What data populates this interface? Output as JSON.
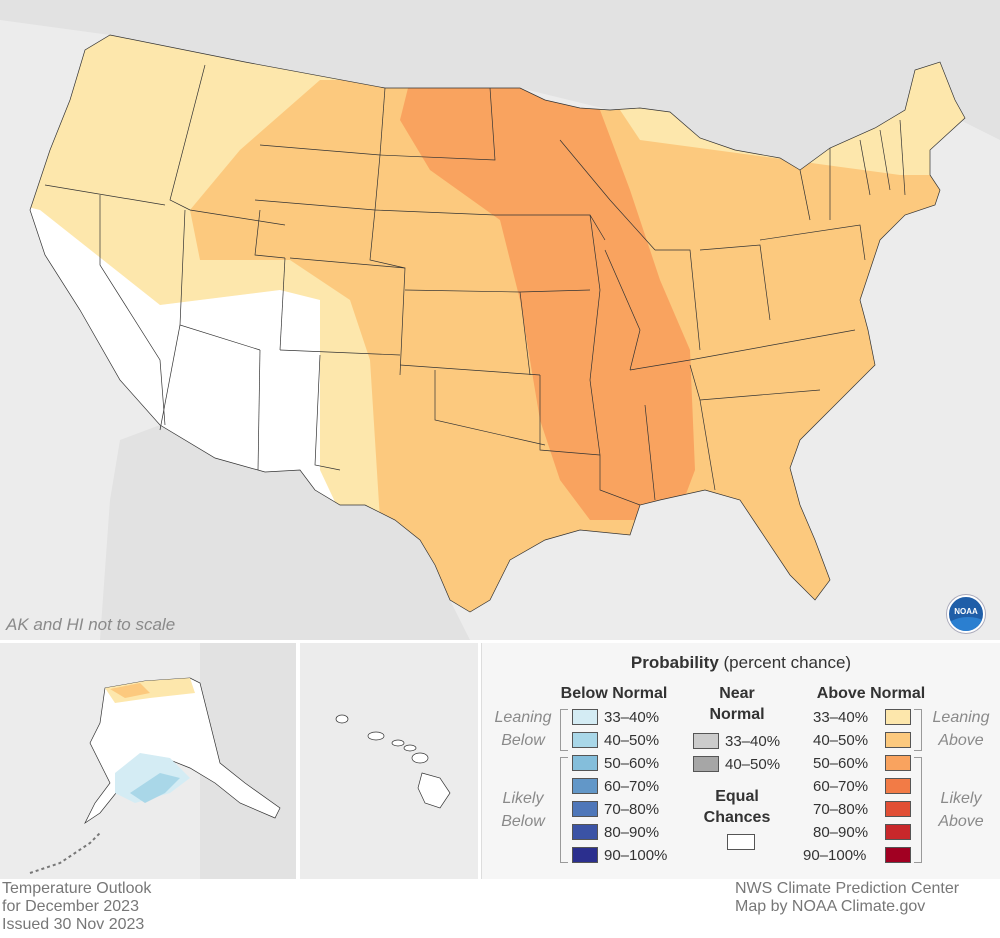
{
  "map": {
    "inset_note": "AK and HI not to scale",
    "logo_text": "NOAA"
  },
  "colors": {
    "background": "#ececec",
    "equal_chances": "#ffffff",
    "above_33_40": "#fde7ac",
    "above_40_50": "#fcc97e",
    "above_50_60": "#f9a35f",
    "above_60_70": "#f27b46",
    "above_70_80": "#e14f35",
    "above_80_90": "#c8282b",
    "above_90_100": "#a10022",
    "below_33_40": "#d4ecf4",
    "below_40_50": "#a9d7e8",
    "below_50_60": "#84bedb",
    "below_60_70": "#6297c8",
    "below_70_80": "#4f77b9",
    "below_80_90": "#3b53a5",
    "below_90_100": "#2b2f8e",
    "near_33_40": "#cccccc",
    "near_40_50": "#a6a6a6"
  },
  "legend": {
    "title_bold": "Probability",
    "title_rest": " (percent chance)",
    "below_header": "Below Normal",
    "near_header_1": "Near",
    "near_header_2": "Normal",
    "above_header": "Above Normal",
    "leaning_label_1": "Leaning",
    "below_label": "Below",
    "above_label": "Above",
    "likely_label": "Likely",
    "equal_header_1": "Equal",
    "equal_header_2": "Chances",
    "below_items": [
      {
        "label": "33–40%",
        "color": "#d4ecf4"
      },
      {
        "label": "40–50%",
        "color": "#a9d7e8"
      },
      {
        "label": "50–60%",
        "color": "#84bedb"
      },
      {
        "label": "60–70%",
        "color": "#6297c8"
      },
      {
        "label": "70–80%",
        "color": "#4f77b9"
      },
      {
        "label": "80–90%",
        "color": "#3b53a5"
      },
      {
        "label": "90–100%",
        "color": "#2b2f8e"
      }
    ],
    "near_items": [
      {
        "label": "33–40%",
        "color": "#cccccc"
      },
      {
        "label": "40–50%",
        "color": "#a6a6a6"
      }
    ],
    "above_items": [
      {
        "label": "33–40%",
        "color": "#fde7ac"
      },
      {
        "label": "40–50%",
        "color": "#fcc97e"
      },
      {
        "label": "50–60%",
        "color": "#f9a35f"
      },
      {
        "label": "60–70%",
        "color": "#f27b46"
      },
      {
        "label": "70–80%",
        "color": "#e14f35"
      },
      {
        "label": "80–90%",
        "color": "#c8282b"
      },
      {
        "label": "90–100%",
        "color": "#a10022"
      }
    ]
  },
  "footer": {
    "line1": "Temperature Outlook",
    "line2": "for December 2023",
    "line3": "Issued 30 Nov 2023",
    "credit1": "NWS Climate Prediction Center",
    "credit2": "Map by NOAA Climate.gov"
  }
}
